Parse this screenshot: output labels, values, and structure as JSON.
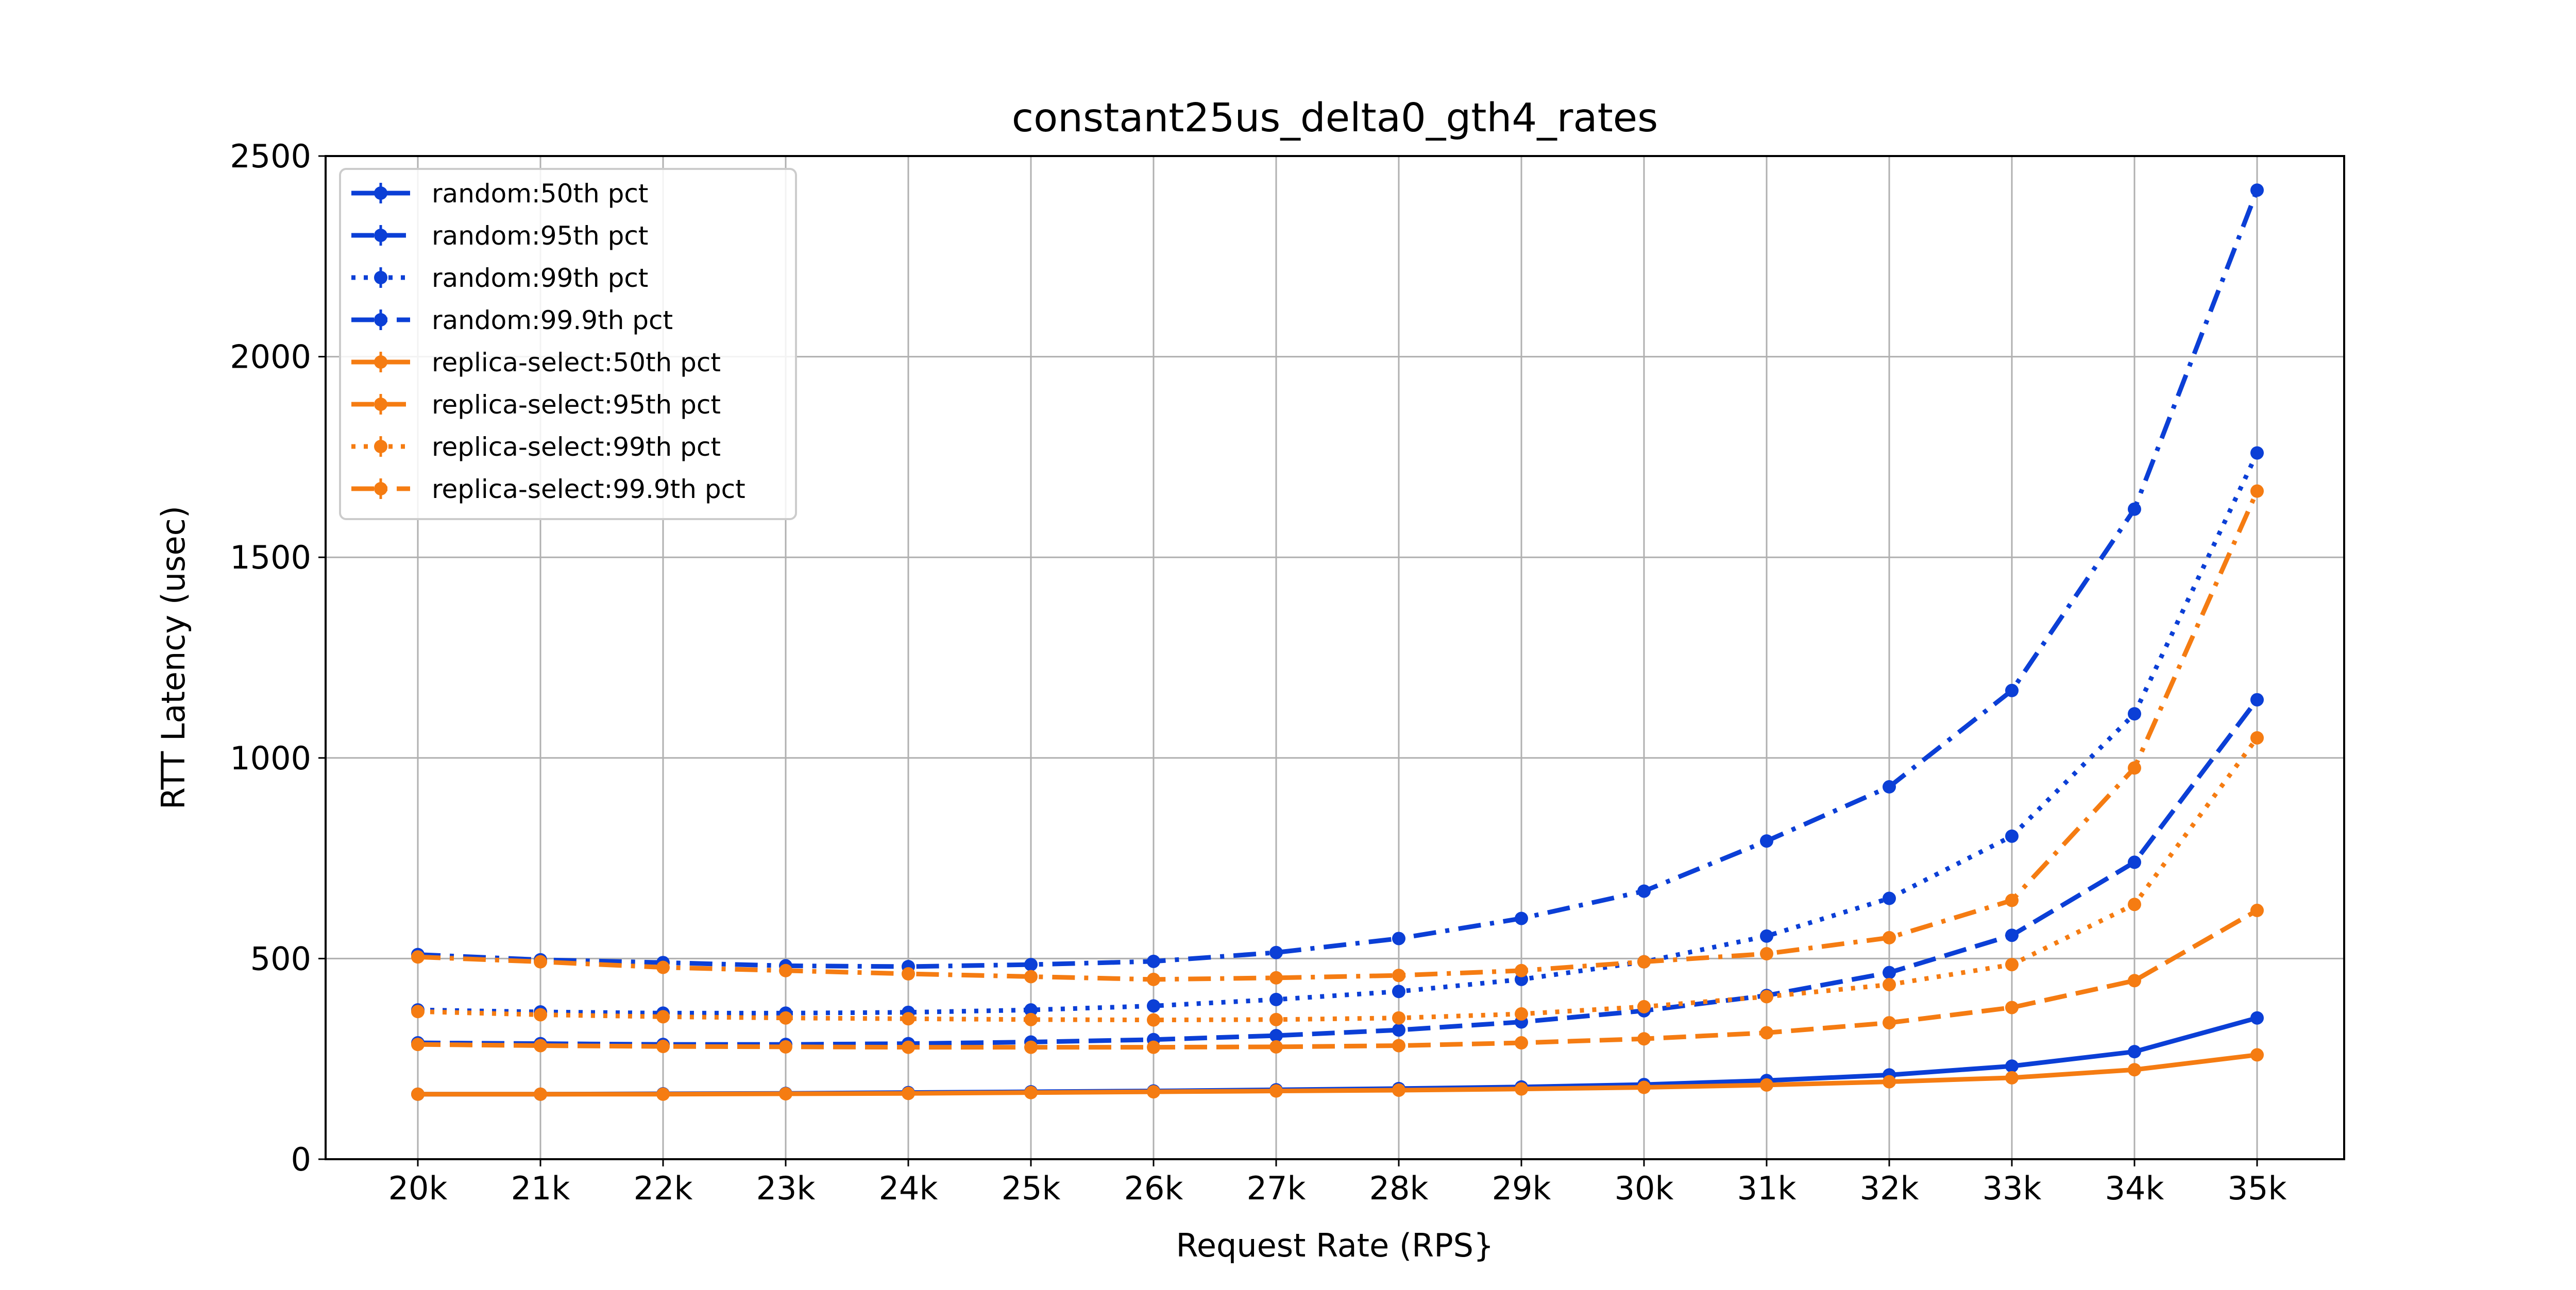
{
  "chart_data": {
    "type": "line",
    "title": "constant25us_delta0_gth4_rates",
    "xlabel": "Request Rate (RPS}",
    "ylabel": "RTT Latency (usec)",
    "categories": [
      "20k",
      "21k",
      "22k",
      "23k",
      "24k",
      "25k",
      "26k",
      "27k",
      "28k",
      "29k",
      "30k",
      "31k",
      "32k",
      "33k",
      "34k",
      "35k"
    ],
    "ylim": [
      0,
      2500
    ],
    "yticks": [
      0,
      500,
      1000,
      1500,
      2000,
      2500
    ],
    "ytick_labels": [
      "0",
      "500",
      "1000",
      "1500",
      "2000",
      "2500"
    ],
    "grid": true,
    "legend_position": "top-left",
    "series": [
      {
        "name": "random:50th pct",
        "color": "#0b3fd6",
        "dash": "solid",
        "values": [
          162,
          162,
          163,
          164,
          166,
          168,
          170,
          173,
          176,
          180,
          186,
          196,
          210,
          232,
          268,
          352
        ]
      },
      {
        "name": "random:95th pct",
        "color": "#0b3fd6",
        "dash": "dashed",
        "values": [
          290,
          288,
          286,
          286,
          288,
          292,
          298,
          308,
          322,
          342,
          370,
          408,
          465,
          558,
          740,
          1145
        ]
      },
      {
        "name": "random:99th pct",
        "color": "#0b3fd6",
        "dash": "dotted",
        "values": [
          372,
          367,
          364,
          364,
          366,
          372,
          382,
          398,
          418,
          448,
          492,
          556,
          650,
          805,
          1110,
          1760
        ]
      },
      {
        "name": "random:99.9th pct",
        "color": "#0b3fd6",
        "dash": "dashdot",
        "values": [
          510,
          497,
          490,
          482,
          480,
          485,
          493,
          515,
          550,
          600,
          668,
          793,
          928,
          1168,
          1620,
          2415
        ]
      },
      {
        "name": "replica-select:50th pct",
        "color": "#f57c12",
        "dash": "solid",
        "values": [
          162,
          162,
          162,
          163,
          164,
          166,
          168,
          170,
          172,
          175,
          179,
          185,
          193,
          203,
          223,
          260
        ]
      },
      {
        "name": "replica-select:95th pct",
        "color": "#f57c12",
        "dash": "dashed",
        "values": [
          286,
          283,
          281,
          280,
          279,
          279,
          279,
          280,
          283,
          290,
          300,
          315,
          340,
          378,
          445,
          620
        ]
      },
      {
        "name": "replica-select:99th pct",
        "color": "#f57c12",
        "dash": "dotted",
        "values": [
          368,
          360,
          355,
          352,
          350,
          348,
          347,
          348,
          352,
          362,
          380,
          405,
          435,
          485,
          635,
          1050
        ]
      },
      {
        "name": "replica-select:99.9th pct",
        "color": "#f57c12",
        "dash": "dashdot",
        "values": [
          504,
          492,
          478,
          470,
          462,
          455,
          448,
          452,
          458,
          470,
          492,
          512,
          552,
          645,
          975,
          1665
        ]
      }
    ]
  }
}
